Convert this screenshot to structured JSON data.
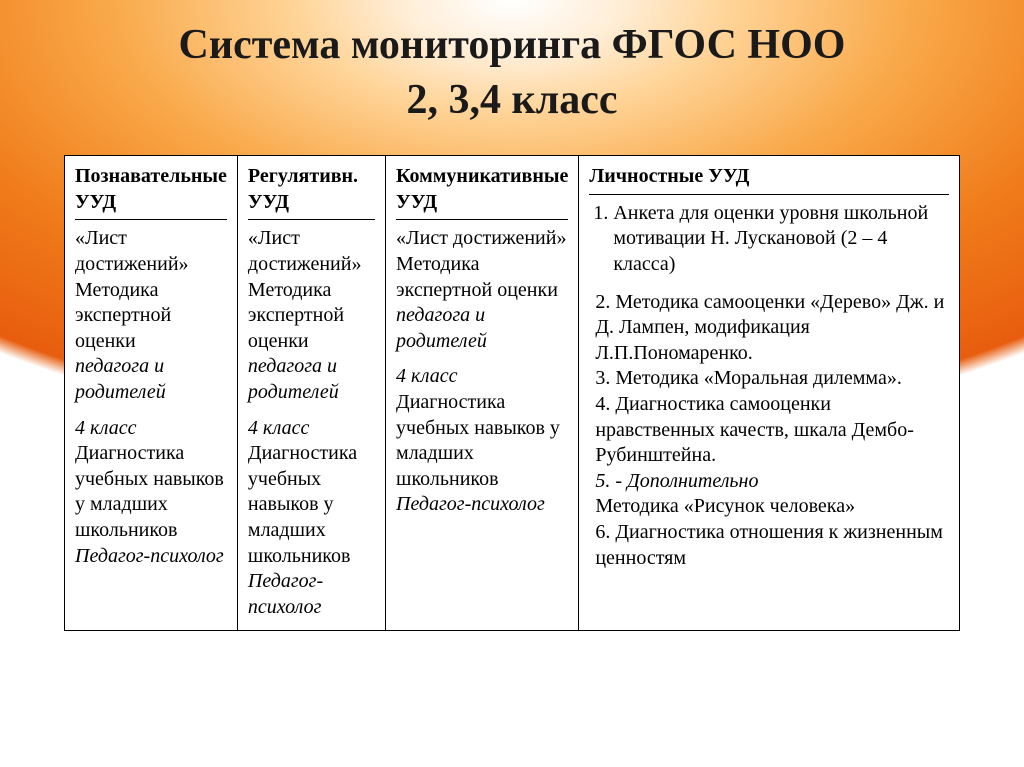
{
  "title": {
    "line1": "Система мониторинга ФГОС НОО",
    "line2": "2, 3,4 класс"
  },
  "table": {
    "cols": [
      {
        "header": "Познавательные УУД",
        "body_quote": "«Лист достижений»",
        "body_method": "Методика экспертной оценки",
        "body_who_ital": "педагога и родителей",
        "class_label_ital": "4 класс",
        "diag": "Диагностика учебных навыков у младших школьников",
        "diag_who_ital": "Педагог-психолог"
      },
      {
        "header": "Регулятивн. УУД",
        "body_quote": "«Лист достижений»",
        "body_method": "Методика экспертной оценки",
        "body_who_ital": "педагога и родителей",
        "class_label_ital": "4 класс",
        "diag": "Диагностика учебных навыков у младших школьников",
        "diag_who_ital": "Педагог-психолог"
      },
      {
        "header": "Коммуникативные УУД",
        "body_quote": "«Лист достижений»",
        "body_method": "Методика экспертной оценки",
        "body_who_ital": "педагога и родителей",
        "class_label_ital": "4 класс",
        "diag": "Диагностика учебных навыков у младших школьников",
        "diag_who_ital": "Педагог-психолог"
      }
    ],
    "col4": {
      "header": "Личностные УУД",
      "item1": "Анкета для оценки уровня школьной мотивации Н. Лускановой (2 – 4 класса)",
      "item2": "2. Методика самооценки «Дерево» Дж. и Д. Лампен, модификация Л.П.Пономаренко.",
      "item3": "3. Методика «Моральная дилемма».",
      "item4": "4. Диагностика  самооценки нравственных качеств, шкала Дембо-Рубинштейна.",
      "item5_ital": "5. - Дополнительно",
      "item5b": "Методика «Рисунок  человека»",
      "item6": "6. Диагностика отношения к жизненным ценностям"
    }
  }
}
